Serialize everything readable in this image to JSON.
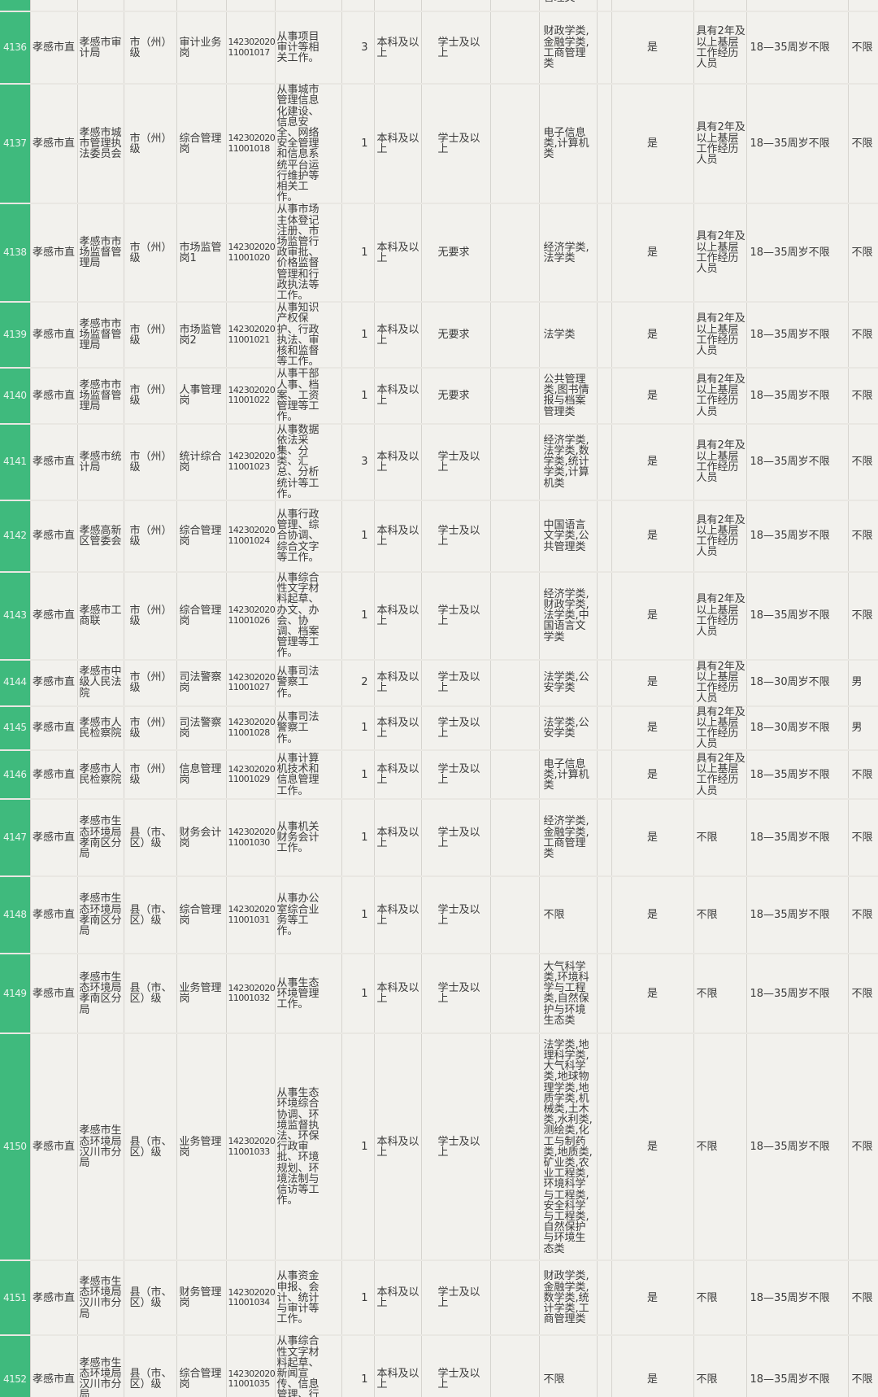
{
  "table": {
    "accent_green": "#3fba7d",
    "cell_background": "#f2f1ed",
    "top_fragment": "管理类",
    "bottom_fragment": "从事生态",
    "rows": [
      {
        "id": "4136",
        "org": "孝感市直",
        "unit": "孝感市审计局",
        "level": "市（州）级",
        "position": "审计业务岗",
        "code1": "142302020",
        "code2": "11001017",
        "duty": "从事项目审计等相关工作。",
        "count": "3",
        "edu": "本科及以上",
        "degree": "学士及以上",
        "major": "财政学类,金融学类,工商管理类",
        "political": "是",
        "experience": "具有2年及以上基层工作经历人员",
        "age": "18—35周岁不限",
        "gender": "不限"
      },
      {
        "id": "4137",
        "org": "孝感市直",
        "unit": "孝感市城市管理执法委员会",
        "level": "市（州）级",
        "position": "综合管理岗",
        "code1": "142302020",
        "code2": "11001018",
        "duty": "从事城市管理信息化建设、信息安全、网络安全管理和信息系统平台运行维护等相关工作。",
        "count": "1",
        "edu": "本科及以上",
        "degree": "学士及以上",
        "major": "电子信息类,计算机类",
        "political": "是",
        "experience": "具有2年及以上基层工作经历人员",
        "age": "18—35周岁不限",
        "gender": "不限"
      },
      {
        "id": "4138",
        "org": "孝感市直",
        "unit": "孝感市市场监督管理局",
        "level": "市（州）级",
        "position": "市场监管岗1",
        "code1": "142302020",
        "code2": "11001020",
        "duty": "从事市场主体登记注册、市场监管行政审批、价格监督管理和行政执法等工作。",
        "count": "1",
        "edu": "本科及以上",
        "degree": "无要求",
        "major": "经济学类,法学类",
        "political": "是",
        "experience": "具有2年及以上基层工作经历人员",
        "age": "18—35周岁不限",
        "gender": "不限"
      },
      {
        "id": "4139",
        "org": "孝感市直",
        "unit": "孝感市市场监督管理局",
        "level": "市（州）级",
        "position": "市场监管岗2",
        "code1": "142302020",
        "code2": "11001021",
        "duty": "从事知识产权保护、行政执法、审核和监督等工作。",
        "count": "1",
        "edu": "本科及以上",
        "degree": "无要求",
        "major": "法学类",
        "political": "是",
        "experience": "具有2年及以上基层工作经历人员",
        "age": "18—35周岁不限",
        "gender": "不限"
      },
      {
        "id": "4140",
        "org": "孝感市直",
        "unit": "孝感市市场监督管理局",
        "level": "市（州）级",
        "position": "人事管理岗",
        "code1": "142302020",
        "code2": "11001022",
        "duty": "从事干部人事、档案、工资管理等工作。",
        "count": "1",
        "edu": "本科及以上",
        "degree": "无要求",
        "major": "公共管理类,图书情报与档案管理类",
        "political": "是",
        "experience": "具有2年及以上基层工作经历人员",
        "age": "18—35周岁不限",
        "gender": "不限"
      },
      {
        "id": "4141",
        "org": "孝感市直",
        "unit": "孝感市统计局",
        "level": "市（州）级",
        "position": "统计综合岗",
        "code1": "142302020",
        "code2": "11001023",
        "duty": "从事数据依法采集、分类、汇总、分析统计等工作。",
        "count": "3",
        "edu": "本科及以上",
        "degree": "学士及以上",
        "major": "经济学类,法学类,数学类,统计学类,计算机类",
        "political": "是",
        "experience": "具有2年及以上基层工作经历人员",
        "age": "18—35周岁不限",
        "gender": "不限"
      },
      {
        "id": "4142",
        "org": "孝感市直",
        "unit": "孝感高新区管委会",
        "level": "市（州）级",
        "position": "综合管理岗",
        "code1": "142302020",
        "code2": "11001024",
        "duty": "从事行政管理、综合协调、综合文字等工作。",
        "count": "1",
        "edu": "本科及以上",
        "degree": "学士及以上",
        "major": "中国语言文学类,公共管理类",
        "political": "是",
        "experience": "具有2年及以上基层工作经历人员",
        "age": "18—35周岁不限",
        "gender": "不限"
      },
      {
        "id": "4143",
        "org": "孝感市直",
        "unit": "孝感市工商联",
        "level": "市（州）级",
        "position": "综合管理岗",
        "code1": "142302020",
        "code2": "11001026",
        "duty": "从事综合性文字材料起草、办文、办会、协调、档案管理等工作。",
        "count": "1",
        "edu": "本科及以上",
        "degree": "学士及以上",
        "major": "经济学类,财政学类,法学类,中国语言文学类",
        "political": "是",
        "experience": "具有2年及以上基层工作经历人员",
        "age": "18—35周岁不限",
        "gender": "不限"
      },
      {
        "id": "4144",
        "org": "孝感市直",
        "unit": "孝感市中级人民法院",
        "level": "市（州）级",
        "position": "司法警察岗",
        "code1": "142302020",
        "code2": "11001027",
        "duty": "从事司法警察工作。",
        "count": "2",
        "edu": "本科及以上",
        "degree": "学士及以上",
        "major": "法学类,公安学类",
        "political": "是",
        "experience": "具有2年及以上基层工作经历人员",
        "age": "18—30周岁不限",
        "gender": "男"
      },
      {
        "id": "4145",
        "org": "孝感市直",
        "unit": "孝感市人民检察院",
        "level": "市（州）级",
        "position": "司法警察岗",
        "code1": "142302020",
        "code2": "11001028",
        "duty": "从事司法警察工作。",
        "count": "1",
        "edu": "本科及以上",
        "degree": "学士及以上",
        "major": "法学类,公安学类",
        "political": "是",
        "experience": "具有2年及以上基层工作经历人员",
        "age": "18—30周岁不限",
        "gender": "男"
      },
      {
        "id": "4146",
        "org": "孝感市直",
        "unit": "孝感市人民检察院",
        "level": "市（州）级",
        "position": "信息管理岗",
        "code1": "142302020",
        "code2": "11001029",
        "duty": "从事计算机技术和信息管理工作。",
        "count": "1",
        "edu": "本科及以上",
        "degree": "学士及以上",
        "major": "电子信息类,计算机类",
        "political": "是",
        "experience": "具有2年及以上基层工作经历人员",
        "age": "18—35周岁不限",
        "gender": "不限"
      },
      {
        "id": "4147",
        "org": "孝感市直",
        "unit": "孝感市生态环境局孝南区分局",
        "level": "县（市、区）级",
        "position": "财务会计岗",
        "code1": "142302020",
        "code2": "11001030",
        "duty": "从事机关财务会计工作。",
        "count": "1",
        "edu": "本科及以上",
        "degree": "学士及以上",
        "major": "经济学类,金融学类,工商管理类",
        "political": "是",
        "experience": "不限",
        "age": "18—35周岁不限",
        "gender": "不限"
      },
      {
        "id": "4148",
        "org": "孝感市直",
        "unit": "孝感市生态环境局孝南区分局",
        "level": "县（市、区）级",
        "position": "综合管理岗",
        "code1": "142302020",
        "code2": "11001031",
        "duty": "从事办公室综合业务等工作。",
        "count": "1",
        "edu": "本科及以上",
        "degree": "学士及以上",
        "major": "不限",
        "political": "是",
        "experience": "不限",
        "age": "18—35周岁不限",
        "gender": "不限"
      },
      {
        "id": "4149",
        "org": "孝感市直",
        "unit": "孝感市生态环境局孝南区分局",
        "level": "县（市、区）级",
        "position": "业务管理岗",
        "code1": "142302020",
        "code2": "11001032",
        "duty": "从事生态环境管理工作。",
        "count": "1",
        "edu": "本科及以上",
        "degree": "学士及以上",
        "major": "大气科学类,环境科学与工程类,自然保护与环境生态类",
        "political": "是",
        "experience": "不限",
        "age": "18—35周岁不限",
        "gender": "不限"
      },
      {
        "id": "4150",
        "org": "孝感市直",
        "unit": "孝感市生态环境局汉川市分局",
        "level": "县（市、区）级",
        "position": "业务管理岗",
        "code1": "142302020",
        "code2": "11001033",
        "duty": "从事生态环境综合协调、环境监督执法、环保行政审批、环境规划、环境法制与信访等工作。",
        "count": "1",
        "edu": "本科及以上",
        "degree": "学士及以上",
        "major": "法学类,地理科学类,大气科学类,地球物理学类,地质学类,机械类,土木类,水利类,测绘类,化工与制药类,地质类,矿业类,农业工程类,环境科学与工程类,安全科学与工程类,自然保护与环境生态类",
        "political": "是",
        "experience": "不限",
        "age": "18—35周岁不限",
        "gender": "不限"
      },
      {
        "id": "4151",
        "org": "孝感市直",
        "unit": "孝感市生态环境局汉川市分局",
        "level": "县（市、区）级",
        "position": "财务管理岗",
        "code1": "142302020",
        "code2": "11001034",
        "duty": "从事资金申报、会计、统计与审计等工作。",
        "count": "1",
        "edu": "本科及以上",
        "degree": "学士及以上",
        "major": "财政学类,金融学类,数学类,统计学类,工商管理类",
        "political": "是",
        "experience": "不限",
        "age": "18—35周岁不限",
        "gender": "不限"
      },
      {
        "id": "4152",
        "org": "孝感市直",
        "unit": "孝感市生态环境局汉川市分局",
        "level": "县（市、区）级",
        "position": "综合管理岗",
        "code1": "142302020",
        "code2": "11001035",
        "duty": "从事综合性文字材料起草、新闻宣传、信息管理、行政管理等工作。",
        "count": "1",
        "edu": "本科及以上",
        "degree": "学士及以上",
        "major": "不限",
        "political": "是",
        "experience": "不限",
        "age": "18—35周岁不限",
        "gender": "不限"
      }
    ]
  }
}
